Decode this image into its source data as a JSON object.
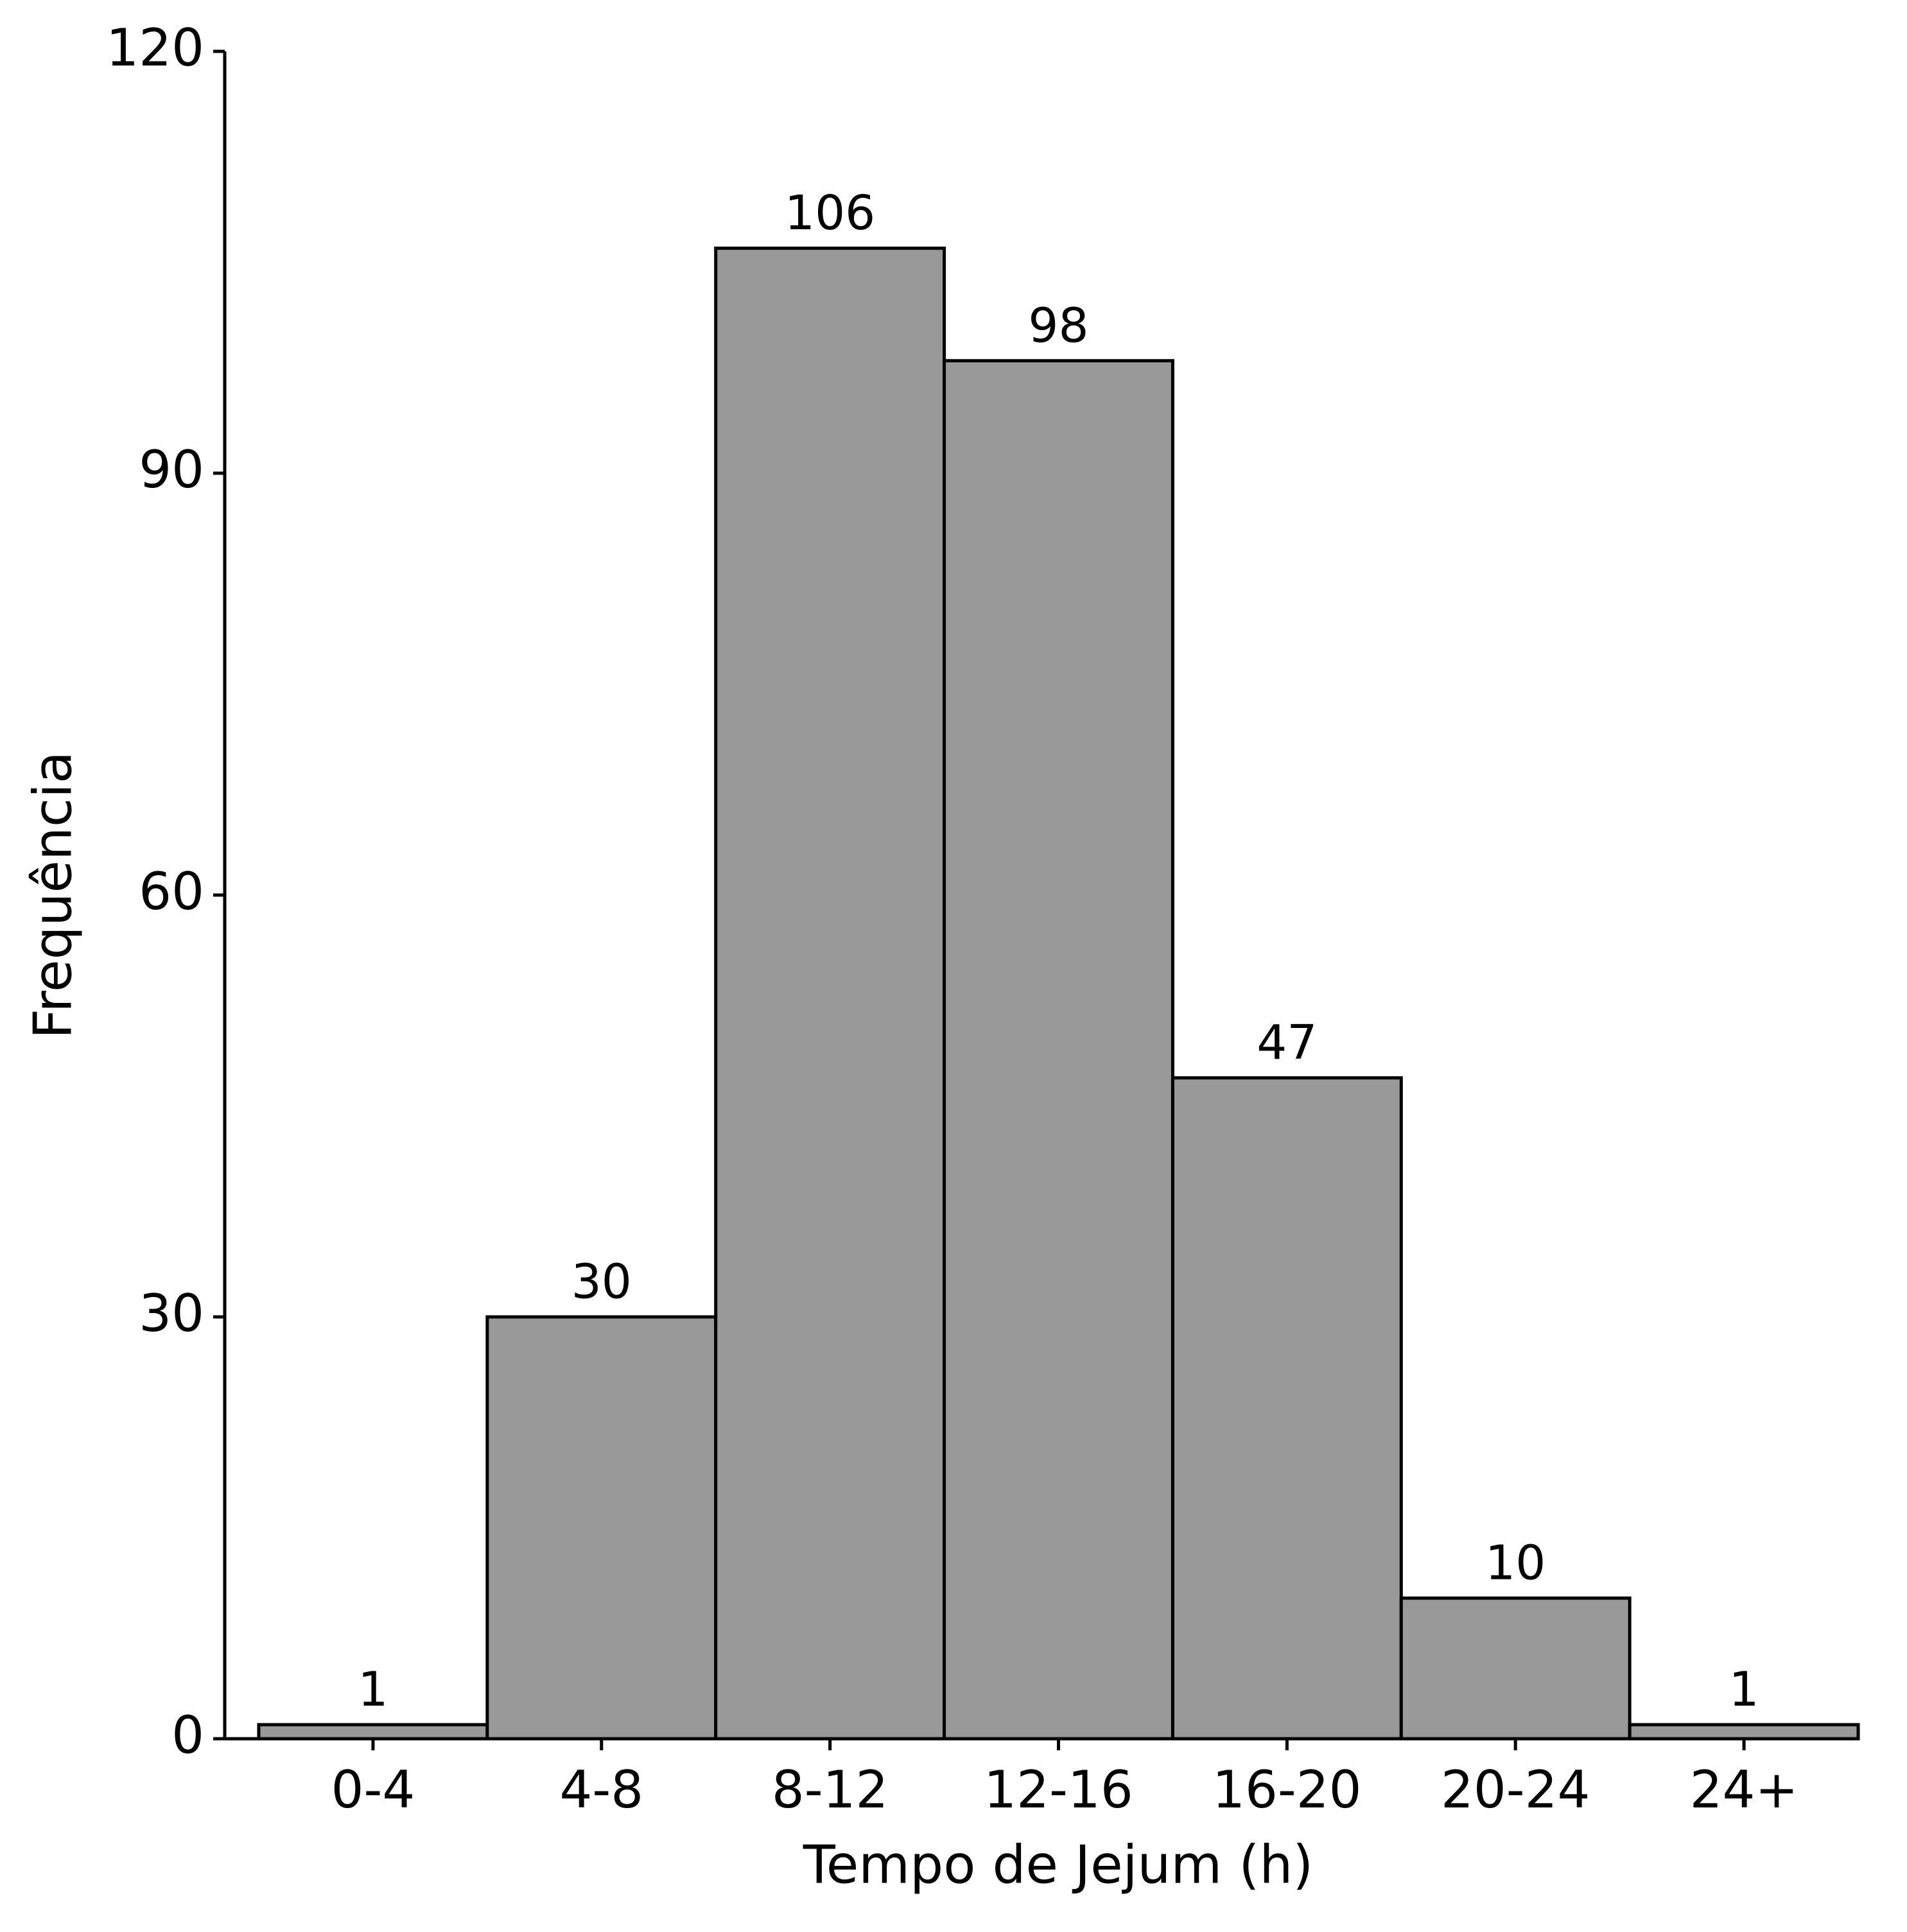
{
  "chart_data": {
    "type": "bar",
    "x_label": "Tempo de Jejum (h)",
    "y_label": "Frequência",
    "categories": [
      "0-4",
      "4-8",
      "8-12",
      "12-16",
      "16-20",
      "20-24",
      "24+"
    ],
    "values": [
      1,
      30,
      106,
      98,
      47,
      10,
      1
    ],
    "color": "#999999",
    "ylim": [
      0,
      120
    ],
    "yticks": [
      0,
      30,
      60,
      90,
      120
    ],
    "grid": false
  }
}
